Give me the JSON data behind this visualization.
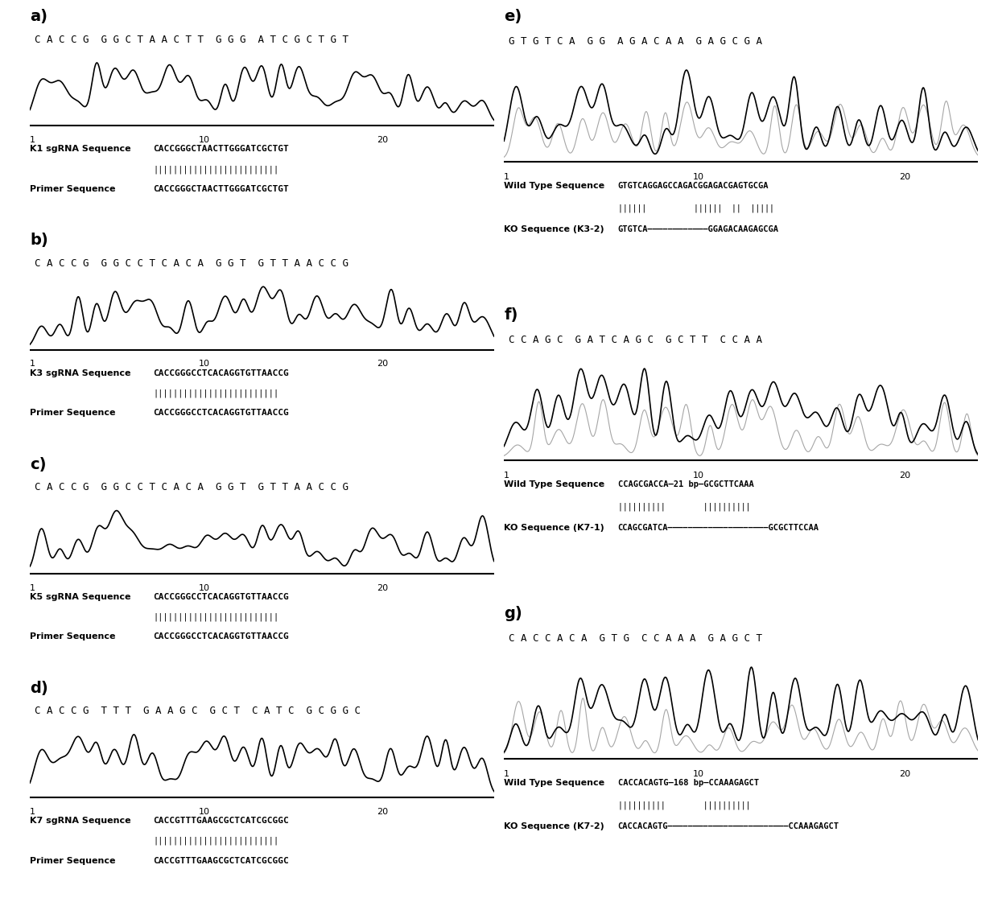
{
  "panels_left": [
    {
      "id": "a",
      "label": "a)",
      "seq_header": "C A C C G  G G C T A A C T T  G G G  A T C G C T G T",
      "label1": "K1 sgRNA Sequence",
      "seq1": "CACCGGGCTAACTTGGGATCGCTGT",
      "label2": "Primer Sequence",
      "seq2": "CACCGGGCTAACTTGGGATCGCTGT",
      "seed": 101,
      "style": "normal"
    },
    {
      "id": "b",
      "label": "b)",
      "seq_header": "C A C C G  G G C C T C A C A  G G T  G T T A A C C G",
      "label1": "K3 sgRNA Sequence",
      "seq1": "CACCGGGCCTCACAGGTGTTAACCG",
      "label2": "Primer Sequence",
      "seq2": "CACCGGGCCTCACAGGTGTTAACCG",
      "seed": 202,
      "style": "normal"
    },
    {
      "id": "c",
      "label": "c)",
      "seq_header": "C A C C G  G G C C T C A C A  G G T  G T T A A C C G",
      "label1": "K5 sgRNA Sequence",
      "seq1": "CACCGGGCCTCACAGGTGTTAACCG",
      "label2": "Primer Sequence",
      "seq2": "CACCGGGCCTCACAGGTGTTAACCG",
      "seed": 303,
      "style": "normal"
    },
    {
      "id": "d",
      "label": "d)",
      "seq_header": "C A C C G  T T T  G A A G C  G C T  C A T C  G C G G C",
      "label1": "K7 sgRNA Sequence",
      "seq1": "CACCGTTTGAAGCGCTCATCGCGGC",
      "label2": "Primer Sequence",
      "seq2": "CACCGTTTGAAGCGCTCATCGCGGC",
      "seed": 404,
      "style": "normal"
    }
  ],
  "panels_right": [
    {
      "id": "e",
      "label": "e)",
      "seq_header": "G T G T C A  G G  A G A C A A  G A G C G A",
      "label1": "Wild Type Sequence",
      "seq1": "GTGTCAGGAGCCAGACGGAGACGAGTGCGA",
      "pipes": "||||||          ||||||||  ||  |||||",
      "label2": "KO Sequence (K3-2)",
      "ko_left": "GTGTCA",
      "ko_right": "GGAGACAAGAGCGA",
      "seed": 505,
      "style": "overlap"
    },
    {
      "id": "f",
      "label": "f)",
      "seq_header": "C C A G C  G A T C A G C  G C T T  C C A A",
      "label1": "Wild Type Sequence",
      "wt_left": "CCAGCGACCA",
      "wt_mid": "21 bp",
      "wt_right": "GCGCTTCAAA",
      "pipes_left": "||||||||||",
      "pipes_right": "||||||||||",
      "label2": "KO Sequence (K7-1)",
      "ko_left": "CCAGCGATCA",
      "ko_right": "GCGCTTCCAA",
      "seed": 606,
      "style": "overlap"
    },
    {
      "id": "g",
      "label": "g)",
      "seq_header": "C A C C A C A  G T G  C C A A A  G A G C T",
      "label1": "Wild Type Sequence",
      "wt_left": "CACCACAGTG",
      "wt_mid": "168 bp",
      "wt_right": "CCAAAGAGCT",
      "pipes_left": "||||||||||",
      "pipes_right": "||||||||||",
      "label2": "KO Sequence (K7-2)",
      "ko_left": "CACCACAGTG",
      "ko_right": "CCAAAGAGCT",
      "seed": 707,
      "style": "overlap"
    }
  ]
}
